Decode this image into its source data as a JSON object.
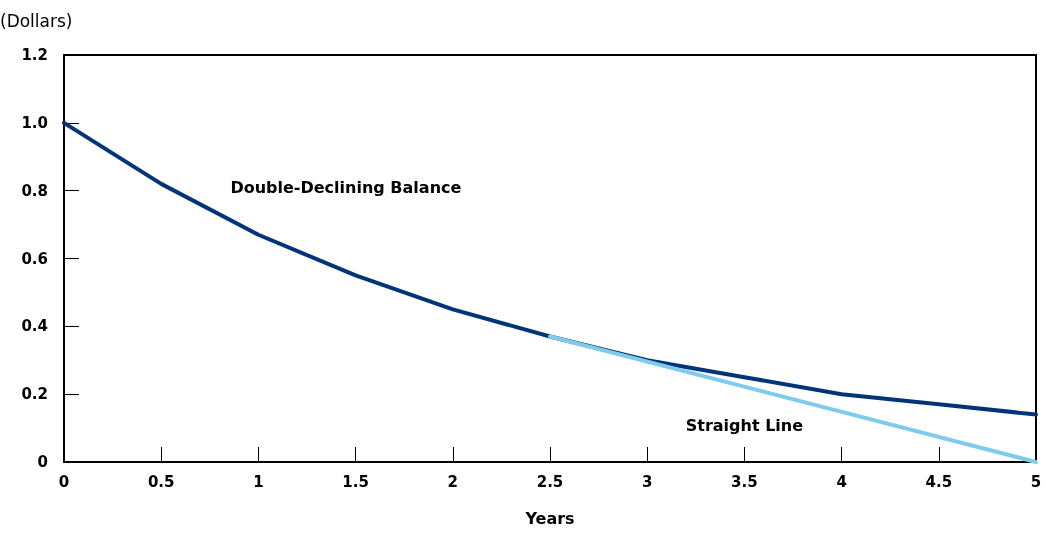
{
  "chart_data": {
    "type": "line",
    "xlabel": "Years",
    "ylabel": "(Dollars)",
    "series": [
      {
        "name": "Double-Declining Balance",
        "color": "#003478",
        "x": [
          0,
          0.5,
          1,
          1.5,
          2,
          2.5,
          3,
          3.5,
          4,
          4.5,
          5
        ],
        "values": [
          1.0,
          0.82,
          0.67,
          0.55,
          0.45,
          0.37,
          0.3,
          0.25,
          0.2,
          0.17,
          0.14
        ]
      },
      {
        "name": "Straight Line",
        "color": "#7ecbea",
        "x": [
          2.5,
          5
        ],
        "values": [
          0.37,
          0
        ]
      }
    ],
    "xlim": [
      0,
      5
    ],
    "xticks": [
      0,
      0.5,
      1,
      1.5,
      2,
      2.5,
      3,
      3.5,
      4,
      4.5,
      5
    ],
    "ylim": [
      0,
      1.2
    ],
    "yticks": [
      0,
      0.2,
      0.4,
      0.6,
      0.8,
      {
        "value": 1,
        "label": "1.0"
      },
      1.2
    ],
    "grid": false,
    "legend": false,
    "marker": "none",
    "line_style": "solid"
  }
}
